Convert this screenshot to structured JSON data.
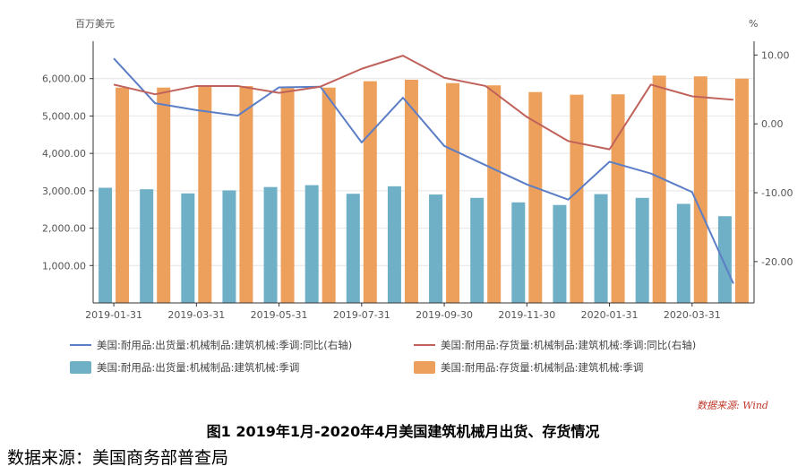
{
  "caption": "图1 2019年1月-2020年4月美国建筑机械月出货、存货情况",
  "source_note": "数据来源：美国商务部普查局",
  "watermark": "数据来源: Wind",
  "chart_data": {
    "type": "bar",
    "left_axis_unit": "百万美元",
    "right_axis_unit": "%",
    "x": [
      "2019-01-31",
      "2019-02-28",
      "2019-03-31",
      "2019-04-30",
      "2019-05-31",
      "2019-06-30",
      "2019-07-31",
      "2019-08-31",
      "2019-09-30",
      "2019-10-31",
      "2019-11-30",
      "2019-12-31",
      "2020-01-31",
      "2020-02-29",
      "2020-03-31",
      "2020-04-30"
    ],
    "x_tick_labels": [
      "2019-01-31",
      "2019-03-31",
      "2019-05-31",
      "2019-07-31",
      "2019-09-30",
      "2019-11-30",
      "2020-01-31",
      "2020-03-31"
    ],
    "y_left_ticks": [
      "1,000.00",
      "2,000.00",
      "3,000.00",
      "4,000.00",
      "5,000.00",
      "6,000.00"
    ],
    "y_left_range": [
      0,
      7000
    ],
    "y_right_ticks": [
      "10.00",
      "0.00",
      "-10.00",
      "-20.00"
    ],
    "y_right_range": [
      -26,
      12
    ],
    "series": [
      {
        "name": "美国:耐用品:出货量:机械制品:建筑机械:季调",
        "kind": "bar",
        "axis": "left",
        "color": "#6fb0c6",
        "values": [
          3080,
          3040,
          2930,
          3010,
          3100,
          3150,
          2920,
          3120,
          2900,
          2810,
          2690,
          2620,
          2910,
          2810,
          2650,
          2320
        ]
      },
      {
        "name": "美国:耐用品:存货量:机械制品:建筑机械:季调",
        "kind": "bar",
        "axis": "left",
        "color": "#eda05b",
        "values": [
          5760,
          5760,
          5820,
          5800,
          5750,
          5760,
          5930,
          5970,
          5880,
          5820,
          5640,
          5570,
          5580,
          6080,
          6060,
          6000
        ]
      },
      {
        "name": "美国:耐用品:出货量:机械制品:建筑机械:季调:同比(右轴)",
        "kind": "line",
        "axis": "right",
        "color": "#5b7ec6",
        "values": [
          9.5,
          3.0,
          2.0,
          1.2,
          5.3,
          5.4,
          -2.7,
          3.8,
          -3.2,
          -6.0,
          -8.8,
          -11.0,
          -5.5,
          -7.2,
          -9.9,
          -23.2
        ]
      },
      {
        "name": "美国:耐用品:存货量:机械制品:建筑机械:季调:同比(右轴)",
        "kind": "line",
        "axis": "right",
        "color": "#c0625b",
        "values": [
          5.7,
          4.3,
          5.5,
          5.5,
          4.5,
          5.4,
          8.0,
          9.9,
          6.7,
          5.5,
          1.0,
          -2.5,
          -3.7,
          5.7,
          4.0,
          3.5
        ]
      }
    ]
  }
}
